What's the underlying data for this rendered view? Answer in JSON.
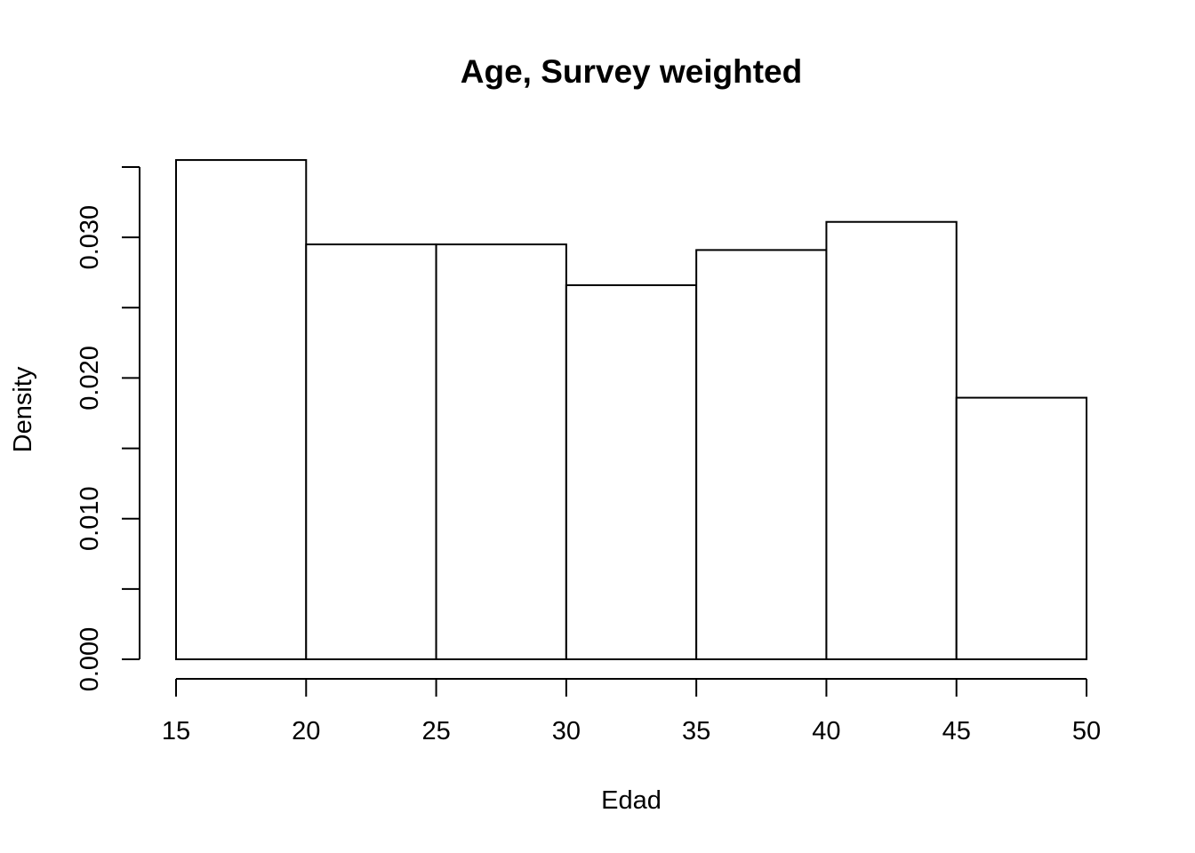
{
  "chart_data": {
    "type": "bar",
    "title": "Age, Survey weighted",
    "xlabel": "Edad",
    "ylabel": "Density",
    "bins": [
      {
        "start": 15,
        "end": 20,
        "value": 0.0355
      },
      {
        "start": 20,
        "end": 25,
        "value": 0.0295
      },
      {
        "start": 25,
        "end": 30,
        "value": 0.0295
      },
      {
        "start": 30,
        "end": 35,
        "value": 0.0266
      },
      {
        "start": 35,
        "end": 40,
        "value": 0.0291
      },
      {
        "start": 40,
        "end": 45,
        "value": 0.0311
      },
      {
        "start": 45,
        "end": 50,
        "value": 0.0186
      }
    ],
    "xlim": [
      15,
      50
    ],
    "ylim": [
      0,
      0.035
    ],
    "x_ticks": [
      15,
      20,
      25,
      30,
      35,
      40,
      45,
      50
    ],
    "x_tick_labels": [
      "15",
      "20",
      "25",
      "30",
      "35",
      "40",
      "45",
      "50"
    ],
    "y_ticks": [
      0,
      0.005,
      0.01,
      0.015,
      0.02,
      0.025,
      0.03,
      0.035
    ],
    "y_tick_labels": [
      "0.000",
      "",
      "0.010",
      "",
      "0.020",
      "",
      "0.030",
      ""
    ],
    "grid": false
  }
}
